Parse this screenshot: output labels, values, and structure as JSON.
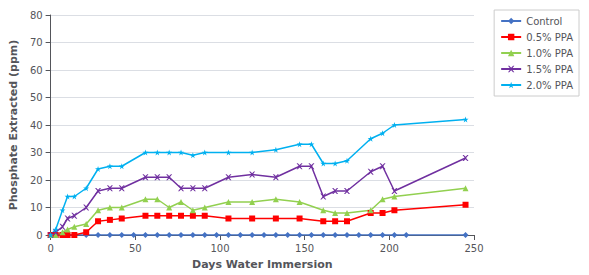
{
  "chart_data": {
    "type": "line",
    "xlabel": "Days Water Immersion",
    "ylabel": "Phosphate Extracted (ppm)",
    "xlim": [
      0,
      250
    ],
    "ylim": [
      0,
      80
    ],
    "xticks": [
      0,
      50,
      100,
      150,
      200,
      250
    ],
    "yticks": [
      0,
      10,
      20,
      30,
      40,
      50,
      60,
      70,
      80
    ],
    "grid": true,
    "legend": "upper right",
    "series": [
      {
        "name": "Control",
        "color": "#4472C4",
        "marker": "diamond",
        "x": [
          0,
          3,
          7,
          10,
          14,
          21,
          28,
          35,
          42,
          49,
          56,
          63,
          70,
          77,
          84,
          91,
          98,
          105,
          112,
          119,
          126,
          133,
          140,
          147,
          154,
          161,
          168,
          175,
          182,
          189,
          196,
          203,
          210,
          245
        ],
        "values": [
          0,
          0,
          0,
          0,
          0,
          0,
          0,
          0,
          0,
          0,
          0,
          0,
          0,
          0,
          0,
          0,
          0,
          0,
          0,
          0,
          0,
          0,
          0,
          0,
          0,
          0,
          0,
          0,
          0,
          0,
          0,
          0,
          0,
          0
        ]
      },
      {
        "name": "0.5% PPA",
        "color": "#FF0000",
        "marker": "square",
        "x": [
          0,
          3,
          7,
          10,
          14,
          21,
          28,
          35,
          42,
          56,
          63,
          70,
          77,
          84,
          91,
          105,
          119,
          133,
          147,
          161,
          168,
          175,
          189,
          196,
          203,
          245
        ],
        "values": [
          0,
          0,
          0,
          0,
          0,
          1,
          5,
          5.5,
          6,
          7,
          7,
          7,
          7,
          7,
          7,
          6,
          6,
          6,
          6,
          5,
          5,
          5,
          8,
          8,
          9,
          11
        ]
      },
      {
        "name": "1.0% PPA",
        "color": "#92D050",
        "marker": "triangle",
        "x": [
          0,
          3,
          7,
          10,
          14,
          21,
          28,
          35,
          42,
          56,
          63,
          70,
          77,
          84,
          91,
          105,
          119,
          133,
          147,
          161,
          168,
          175,
          189,
          196,
          203,
          245
        ],
        "values": [
          0,
          0,
          1,
          2,
          3,
          4,
          9,
          10,
          10,
          13,
          13,
          10,
          12,
          9,
          10,
          12,
          12,
          13,
          12,
          9,
          8,
          8,
          9,
          13,
          14,
          17
        ]
      },
      {
        "name": "1.5% PPA",
        "color": "#7030A0",
        "marker": "x",
        "x": [
          0,
          3,
          7,
          10,
          14,
          21,
          28,
          35,
          42,
          56,
          63,
          70,
          77,
          84,
          91,
          105,
          119,
          133,
          147,
          154,
          161,
          168,
          175,
          189,
          196,
          203,
          245
        ],
        "values": [
          0,
          1,
          3,
          6,
          7,
          10,
          16,
          17,
          17,
          21,
          21,
          21,
          17,
          17,
          17,
          21,
          22,
          21,
          25,
          25,
          14,
          16,
          16,
          23,
          25,
          16,
          28
        ]
      },
      {
        "name": "2.0% PPA",
        "color": "#00B0F0",
        "marker": "star",
        "x": [
          0,
          3,
          7,
          10,
          14,
          21,
          28,
          35,
          42,
          56,
          63,
          70,
          77,
          84,
          91,
          105,
          119,
          133,
          147,
          154,
          161,
          168,
          175,
          189,
          196,
          203,
          245
        ],
        "values": [
          0,
          2,
          9,
          14,
          14,
          17,
          24,
          25,
          25,
          30,
          30,
          30,
          30,
          29,
          30,
          30,
          30,
          31,
          33,
          33,
          26,
          26,
          27,
          35,
          37,
          40,
          42
        ]
      }
    ]
  }
}
